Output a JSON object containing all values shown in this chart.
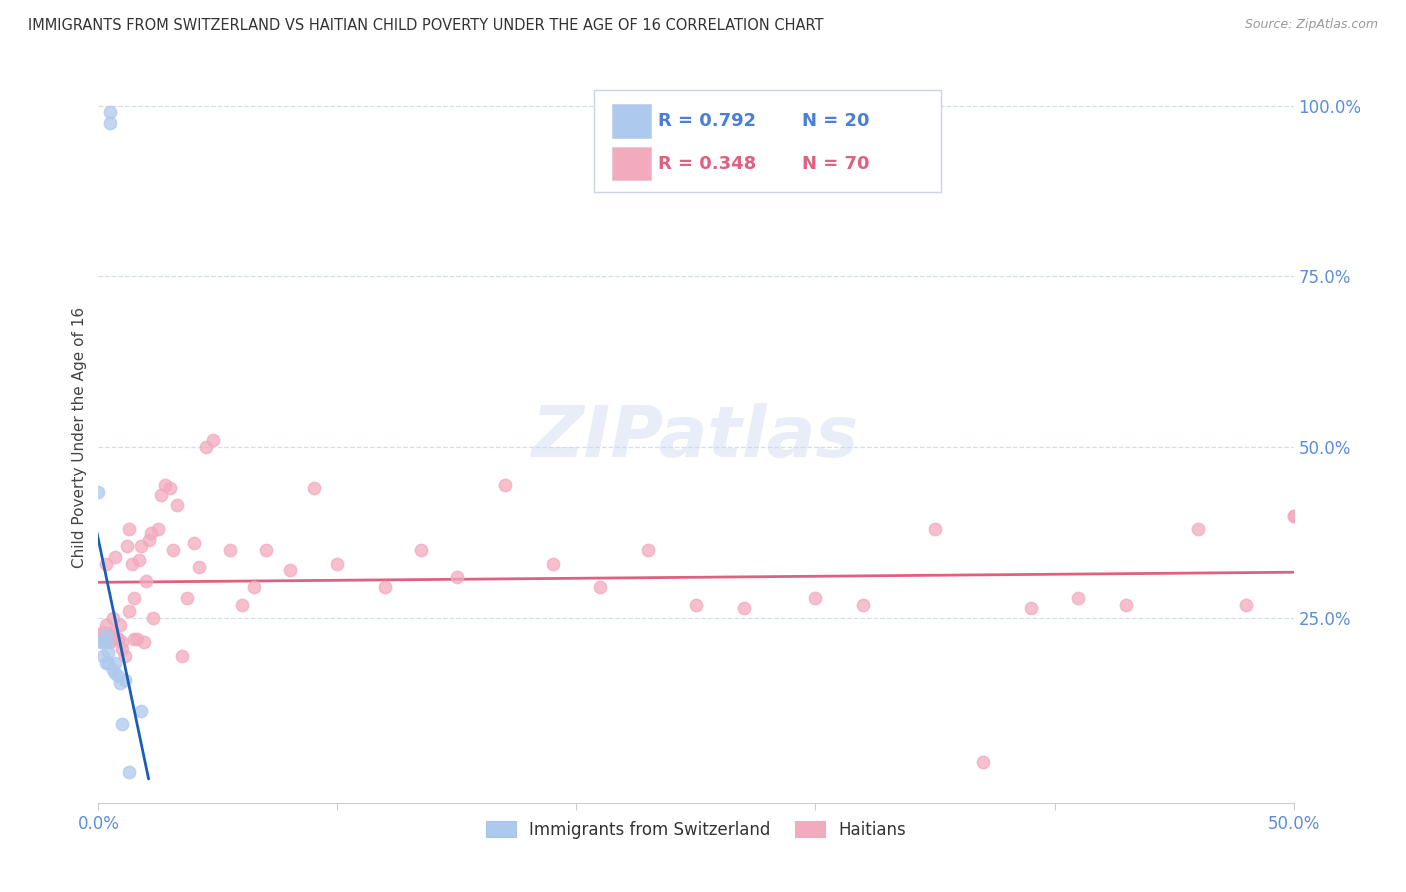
{
  "title": "IMMIGRANTS FROM SWITZERLAND VS HAITIAN CHILD POVERTY UNDER THE AGE OF 16 CORRELATION CHART",
  "source": "Source: ZipAtlas.com",
  "ylabel": "Child Poverty Under the Age of 16",
  "legend_1_r": "R = 0.792",
  "legend_1_n": "N = 20",
  "legend_2_r": "R = 0.348",
  "legend_2_n": "N = 70",
  "legend_label_1": "Immigrants from Switzerland",
  "legend_label_2": "Haitians",
  "swiss_color": "#aec9ee",
  "haitian_color": "#f2aabe",
  "swiss_line_color": "#1a5fb4",
  "haitian_line_color": "#e06080",
  "swiss_x": [
    0.0,
    0.001,
    0.002,
    0.002,
    0.003,
    0.003,
    0.003,
    0.004,
    0.004,
    0.005,
    0.005,
    0.006,
    0.007,
    0.007,
    0.008,
    0.009,
    0.01,
    0.011,
    0.013,
    0.018
  ],
  "swiss_y": [
    0.435,
    0.215,
    0.195,
    0.215,
    0.185,
    0.215,
    0.225,
    0.185,
    0.2,
    0.975,
    0.99,
    0.175,
    0.17,
    0.185,
    0.165,
    0.155,
    0.095,
    0.16,
    0.025,
    0.115
  ],
  "haitian_x": [
    0.001,
    0.002,
    0.003,
    0.003,
    0.004,
    0.005,
    0.005,
    0.006,
    0.006,
    0.007,
    0.007,
    0.008,
    0.008,
    0.009,
    0.01,
    0.01,
    0.011,
    0.012,
    0.013,
    0.013,
    0.014,
    0.015,
    0.015,
    0.016,
    0.017,
    0.018,
    0.019,
    0.02,
    0.021,
    0.022,
    0.023,
    0.025,
    0.026,
    0.028,
    0.03,
    0.031,
    0.033,
    0.035,
    0.037,
    0.04,
    0.042,
    0.045,
    0.048,
    0.055,
    0.06,
    0.065,
    0.07,
    0.08,
    0.09,
    0.1,
    0.12,
    0.135,
    0.15,
    0.17,
    0.19,
    0.21,
    0.23,
    0.25,
    0.27,
    0.3,
    0.32,
    0.35,
    0.37,
    0.39,
    0.41,
    0.43,
    0.46,
    0.48,
    0.5,
    0.5
  ],
  "haitian_y": [
    0.225,
    0.23,
    0.33,
    0.24,
    0.225,
    0.215,
    0.225,
    0.25,
    0.23,
    0.22,
    0.34,
    0.22,
    0.22,
    0.24,
    0.215,
    0.205,
    0.195,
    0.355,
    0.26,
    0.38,
    0.33,
    0.28,
    0.22,
    0.22,
    0.335,
    0.355,
    0.215,
    0.305,
    0.365,
    0.375,
    0.25,
    0.38,
    0.43,
    0.445,
    0.44,
    0.35,
    0.415,
    0.195,
    0.28,
    0.36,
    0.325,
    0.5,
    0.51,
    0.35,
    0.27,
    0.295,
    0.35,
    0.32,
    0.44,
    0.33,
    0.295,
    0.35,
    0.31,
    0.445,
    0.33,
    0.295,
    0.35,
    0.27,
    0.265,
    0.28,
    0.27,
    0.38,
    0.04,
    0.265,
    0.28,
    0.27,
    0.38,
    0.27,
    0.4,
    0.4
  ],
  "xlim": [
    0.0,
    0.5
  ],
  "ylim": [
    -0.02,
    1.05
  ],
  "watermark_text": "ZIPatlas",
  "background_color": "#ffffff",
  "title_color": "#333333",
  "axis_label_color": "#5b8dd9",
  "grid_color": "#d5dded",
  "marker_size": 80,
  "xticks": [
    0.0,
    0.1,
    0.2,
    0.3,
    0.4,
    0.5
  ],
  "xtick_labels": [
    "0.0%",
    "",
    "",
    "",
    "",
    "50.0%"
  ],
  "yticks": [
    0.25,
    0.5,
    0.75,
    1.0
  ],
  "ytick_labels": [
    "25.0%",
    "50.0%",
    "75.0%",
    "100.0%"
  ]
}
